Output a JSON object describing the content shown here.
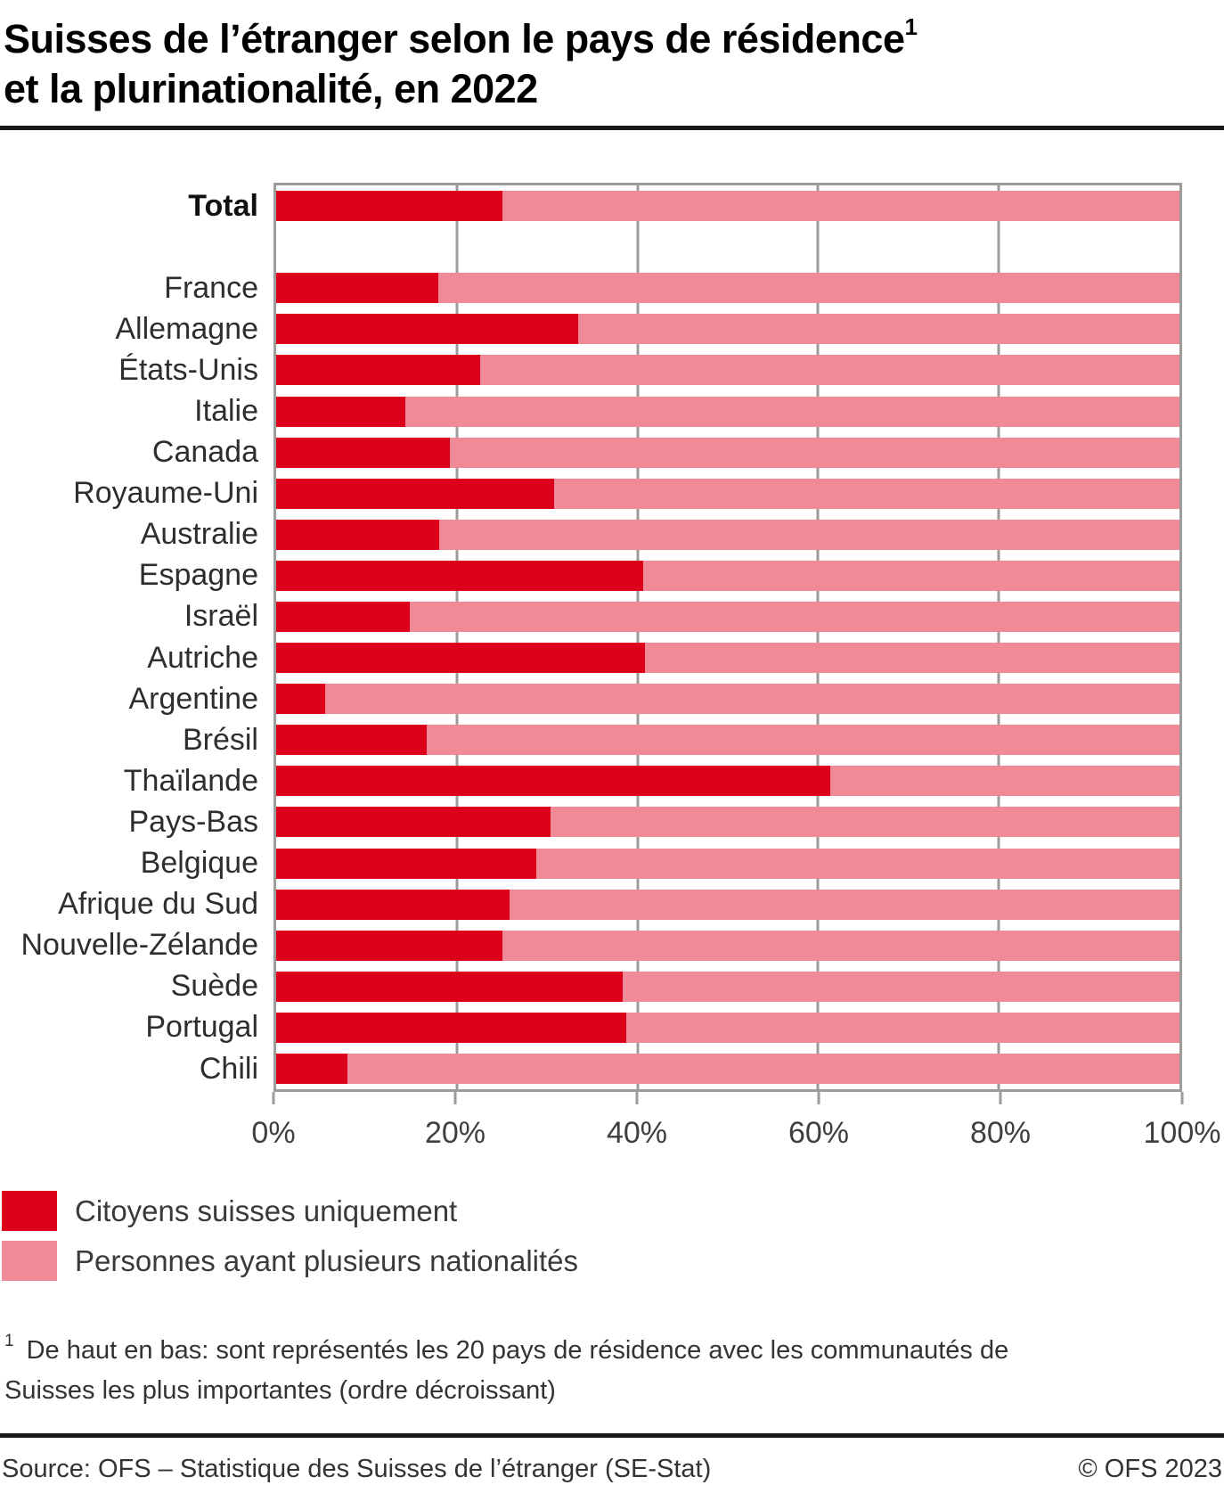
{
  "title": {
    "line1": "Suisses de l’étranger selon le pays de résidence",
    "footnote_marker": "1",
    "line2": "et la plurinationalité, en 2022"
  },
  "chart_data": {
    "type": "bar",
    "orientation": "horizontal",
    "stacked": true,
    "title": "Suisses de l’étranger selon le pays de résidence et la plurinationalité, en 2022",
    "xlabel": "",
    "ylabel": "",
    "xlim": [
      0,
      100
    ],
    "unit": "%",
    "x_tick_labels": [
      "0%",
      "20%",
      "40%",
      "60%",
      "80%",
      "100%"
    ],
    "grid_percents": [
      20,
      40,
      60,
      80
    ],
    "grid": "vertical",
    "legend_position": "bottom-left",
    "emphasized_category": "Total",
    "gap_after_first_category": true,
    "categories": [
      "Total",
      "France",
      "Allemagne",
      "États-Unis",
      "Italie",
      "Canada",
      "Royaume-Uni",
      "Australie",
      "Espagne",
      "Israël",
      "Autriche",
      "Argentine",
      "Brésil",
      "Thaïlande",
      "Pays-Bas",
      "Belgique",
      "Afrique du Sud",
      "Nouvelle-Zélande",
      "Suède",
      "Portugal",
      "Chili"
    ],
    "series": [
      {
        "name": "Citoyens suisses uniquement",
        "color": "#dc001b",
        "values": [
          25.0,
          17.9,
          33.4,
          22.6,
          14.3,
          19.2,
          30.8,
          18.0,
          40.6,
          14.8,
          40.8,
          5.4,
          16.7,
          61.3,
          30.4,
          28.8,
          25.8,
          25.0,
          38.4,
          38.8,
          7.9
        ]
      },
      {
        "name": "Personnes ayant plusieurs nationalités",
        "color": "#f08a96",
        "values": [
          75.0,
          82.1,
          66.6,
          77.4,
          85.7,
          80.8,
          69.2,
          82.0,
          59.4,
          85.2,
          59.2,
          94.6,
          83.3,
          38.7,
          69.6,
          71.2,
          74.2,
          75.0,
          61.6,
          61.2,
          92.1
        ]
      }
    ]
  },
  "footnote": {
    "marker": "1",
    "line1": "De haut en bas: sont représentés les 20 pays de résidence avec les communautés de",
    "line2": "Suisses les plus importantes (ordre décroissant)"
  },
  "footer": {
    "source": "Source: OFS – Statistique des Suisses de l’étranger (SE-Stat)",
    "copyright": "© OFS 2023"
  },
  "colors": {
    "swiss_only": "#dc001b",
    "multi_national": "#f08a96",
    "grid": "#9c9c9c",
    "rule": "#1a1a1a"
  }
}
